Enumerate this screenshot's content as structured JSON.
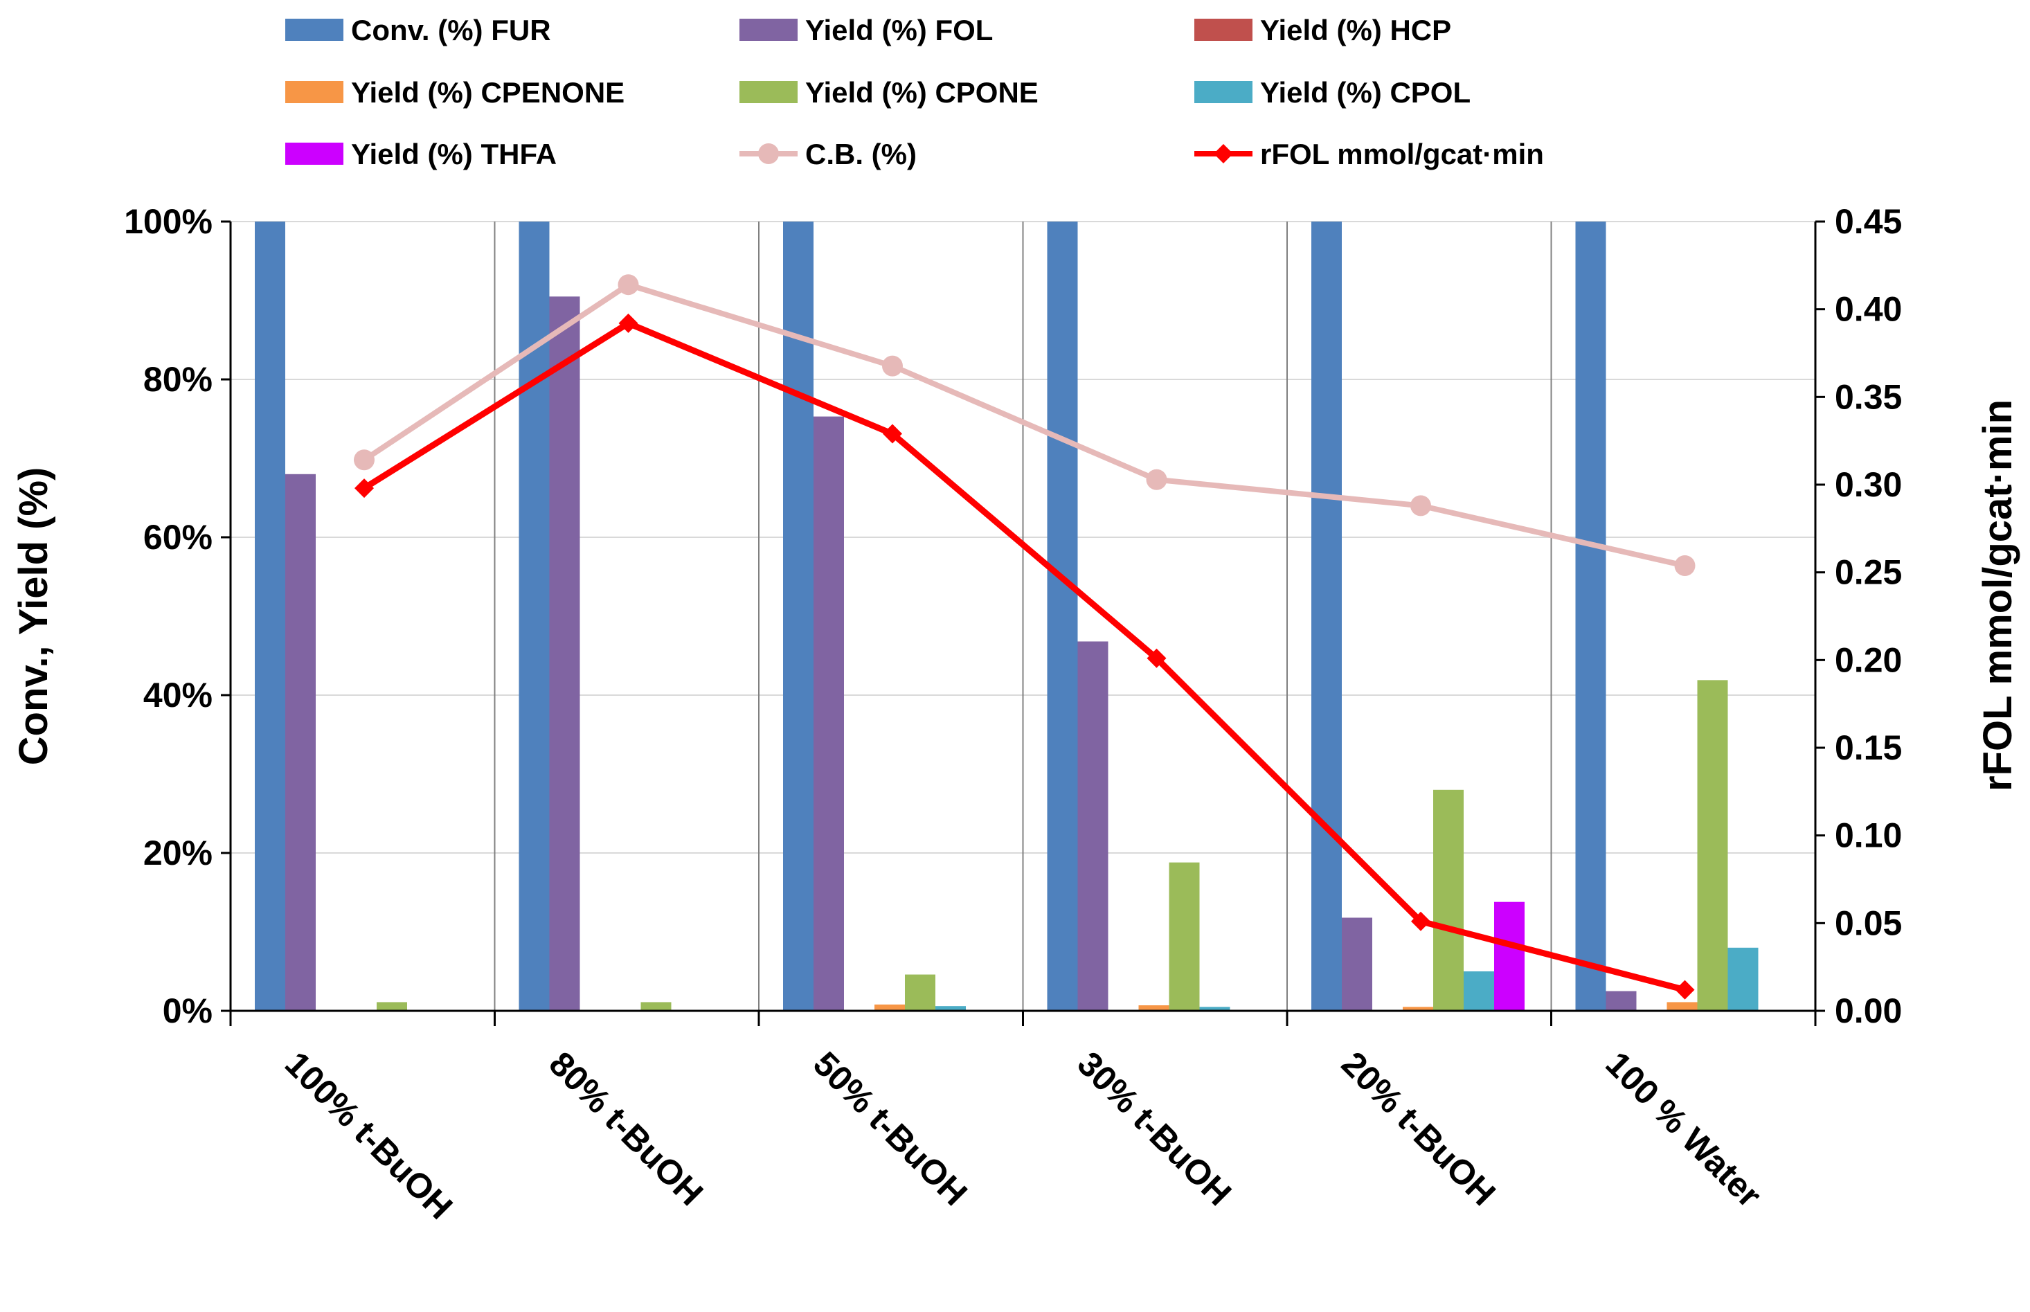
{
  "chart_data": {
    "type": "bar",
    "categories": [
      "100% t-BuOH",
      "80% t-BuOH",
      "50% t-BuOH",
      "30% t-BuOH",
      "20% t-BuOH",
      "100 % Water"
    ],
    "ylabel": "Conv., Yield (%)",
    "ylabel_right": "rFOL mmol/gcat·min",
    "ylim": [
      0,
      100
    ],
    "ylim_right": [
      0,
      0.45
    ],
    "yticks": [
      "0%",
      "20%",
      "40%",
      "60%",
      "80%",
      "100%"
    ],
    "yticks_right": [
      "0.00",
      "0.05",
      "0.10",
      "0.15",
      "0.20",
      "0.25",
      "0.30",
      "0.35",
      "0.40",
      "0.45"
    ],
    "grid": true,
    "legend_position": "top",
    "bar_series": [
      {
        "name": "Conv. (%) FUR",
        "color": "#4F81BD",
        "values": [
          100,
          100,
          100,
          100,
          100,
          100
        ]
      },
      {
        "name": "Yield (%) FOL",
        "color": "#8064A2",
        "values": [
          68,
          90.5,
          75.3,
          46.8,
          11.8,
          2.5
        ]
      },
      {
        "name": "Yield (%) HCP",
        "color": "#C0504D",
        "values": [
          0,
          0,
          0,
          0,
          0,
          0
        ]
      },
      {
        "name": "Yield (%) CPENONE",
        "color": "#F79646",
        "values": [
          0,
          0,
          0.8,
          0.7,
          0.5,
          1.1
        ]
      },
      {
        "name": "Yield (%) CPONE",
        "color": "#9BBB59",
        "values": [
          1.1,
          1.1,
          4.6,
          18.8,
          28,
          41.9
        ]
      },
      {
        "name": "Yield (%) CPOL",
        "color": "#4BACC6",
        "values": [
          0,
          0,
          0.6,
          0.5,
          5,
          8
        ]
      },
      {
        "name": "Yield (%) THFA",
        "color": "#CC00FF",
        "values": [
          0,
          0,
          0,
          0,
          13.8,
          0
        ]
      }
    ],
    "line_series": [
      {
        "name": "C.B. (%)",
        "color": "#E6B9B8",
        "axis": "left",
        "marker": "circle",
        "values": [
          69.8,
          92,
          81.7,
          67.3,
          64,
          56.4
        ]
      },
      {
        "name": "rFOL mmol/gcat·min",
        "color": "#FF0000",
        "axis": "right",
        "marker": "diamond",
        "values": [
          0.298,
          0.392,
          0.329,
          0.201,
          0.051,
          0.012
        ]
      }
    ]
  }
}
